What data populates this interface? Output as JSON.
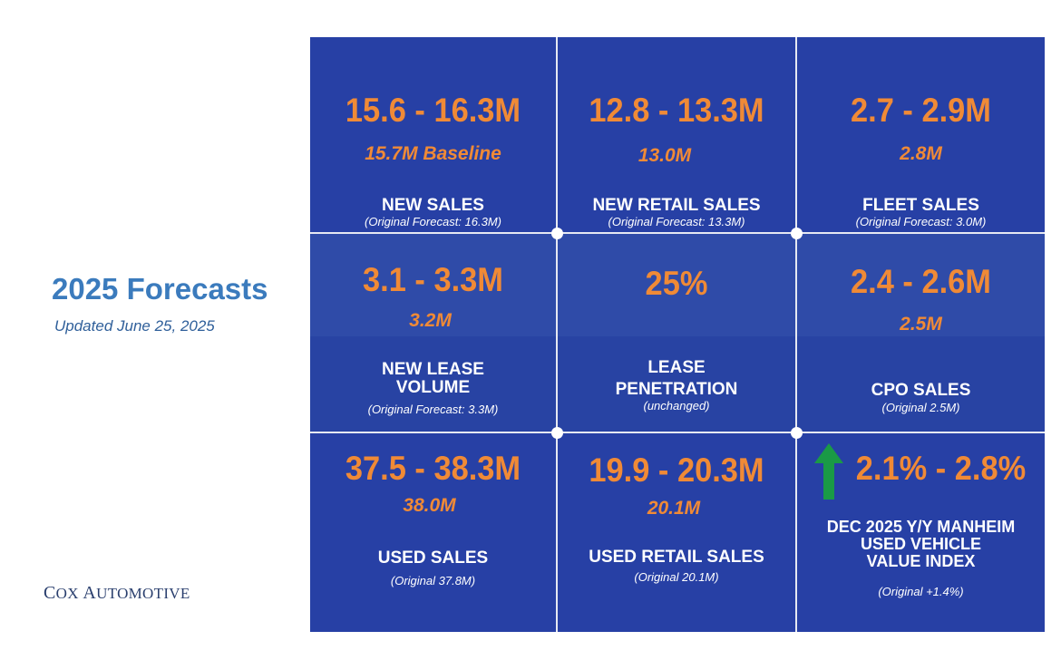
{
  "page": {
    "title": "2025 Forecasts",
    "subtitle": "Updated June 25, 2025",
    "logo_first_letter": "C",
    "logo_text": "OX ",
    "logo_second_letter": "A",
    "logo_text2": "UTOMOTIVE"
  },
  "cells": [
    {
      "range": "15.6 - 16.3M",
      "value": "15.7M Baseline",
      "label": "NEW SALES",
      "note": "(Original Forecast: 16.3M)"
    },
    {
      "range": "12.8 - 13.3M",
      "value": "13.0M",
      "label": "NEW RETAIL SALES",
      "note": "(Original Forecast: 13.3M)"
    },
    {
      "range": "2.7 - 2.9M",
      "value": "2.8M",
      "label": "FLEET SALES",
      "note": "(Original Forecast: 3.0M)"
    },
    {
      "range": "3.1 - 3.3M",
      "value": "3.2M",
      "label_line1": "NEW LEASE",
      "label_line2": "VOLUME",
      "note": "(Original Forecast: 3.3M)"
    },
    {
      "range": "25%",
      "label_line1": "LEASE",
      "label_line2": "PENETRATION",
      "note": "(unchanged)"
    },
    {
      "range": "2.4 - 2.6M",
      "value": "2.5M",
      "label": "CPO SALES",
      "note": "(Original 2.5M)"
    },
    {
      "range": "37.5 - 38.3M",
      "value": "38.0M",
      "label": "USED SALES",
      "note": "(Original 37.8M)"
    },
    {
      "range": "19.9 - 20.3M",
      "value": "20.1M",
      "label": "USED RETAIL SALES",
      "note": "(Original 20.1M)"
    },
    {
      "range": "2.1% - 2.8%",
      "label_line1": "DEC 2025 Y/Y MANHEIM",
      "label_line2": "USED VEHICLE",
      "label_line3": "VALUE INDEX",
      "note": "(Original +1.4%)"
    }
  ],
  "colors": {
    "grid_bg": "#2740a5",
    "accent_orange": "#f08a36",
    "title_blue": "#3b7bbd",
    "arrow_green": "#1a9a46"
  },
  "icons": {
    "trend_arrow": "up-arrow-icon"
  }
}
